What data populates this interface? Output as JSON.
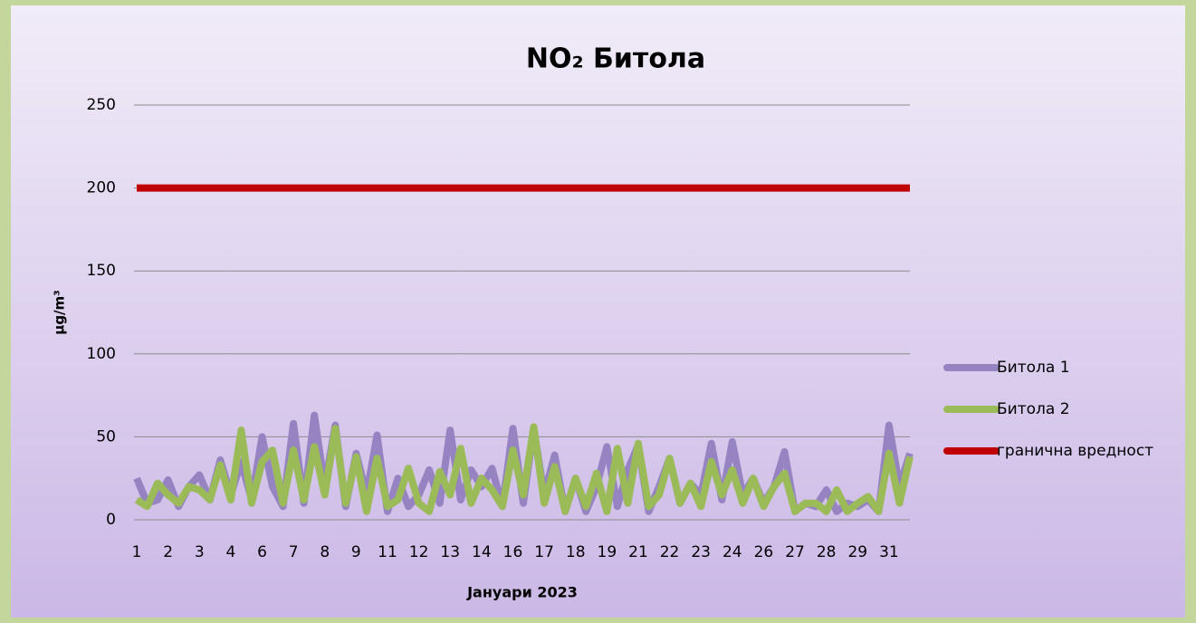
{
  "chart_data": {
    "type": "line",
    "title": "NO₂ Битола",
    "ylabel": "µg/m³",
    "xlabel": "Јануари 2023",
    "categories": [
      "1",
      null,
      null,
      "2",
      null,
      null,
      "3",
      null,
      null,
      "4",
      null,
      null,
      "6",
      null,
      null,
      "7",
      null,
      null,
      "8",
      null,
      null,
      "9",
      null,
      null,
      "11",
      null,
      null,
      "12",
      null,
      null,
      "13",
      null,
      null,
      "14",
      null,
      null,
      "16",
      null,
      null,
      "17",
      null,
      null,
      "18",
      null,
      null,
      "19",
      null,
      null,
      "21",
      null,
      null,
      "22",
      null,
      null,
      "23",
      null,
      null,
      "24",
      null,
      null,
      "26",
      null,
      null,
      "27",
      null,
      null,
      "28",
      null,
      null,
      "29",
      null,
      null,
      "31",
      null,
      null
    ],
    "series": [
      {
        "name": "Битола 1",
        "color": "#9684c2",
        "values": [
          25,
          10,
          12,
          24,
          8,
          20,
          27,
          12,
          36,
          15,
          35,
          12,
          50,
          20,
          8,
          58,
          10,
          63,
          20,
          57,
          8,
          40,
          15,
          51,
          5,
          25,
          8,
          15,
          30,
          10,
          54,
          12,
          30,
          20,
          31,
          8,
          55,
          10,
          55,
          15,
          39,
          5,
          25,
          5,
          20,
          44,
          8,
          30,
          45,
          5,
          20,
          37,
          10,
          22,
          15,
          46,
          12,
          47,
          15,
          25,
          10,
          20,
          41,
          5,
          10,
          8,
          18,
          5,
          10,
          8,
          12,
          5,
          57,
          20,
          40
        ]
      },
      {
        "name": "Битола 2",
        "color": "#9bbb59",
        "values": [
          12,
          8,
          22,
          15,
          10,
          20,
          18,
          12,
          33,
          12,
          54,
          10,
          35,
          42,
          10,
          42,
          12,
          44,
          15,
          55,
          10,
          38,
          5,
          37,
          8,
          12,
          31,
          10,
          5,
          29,
          15,
          43,
          10,
          25,
          18,
          8,
          42,
          15,
          56,
          10,
          32,
          5,
          25,
          8,
          28,
          5,
          43,
          10,
          46,
          8,
          15,
          37,
          10,
          22,
          8,
          35,
          15,
          30,
          10,
          25,
          8,
          20,
          28,
          5,
          10,
          10,
          5,
          18,
          5,
          10,
          14,
          5,
          40,
          10,
          38
        ]
      },
      {
        "name": "гранична вредност",
        "color": "#c00000",
        "values": [
          200,
          200,
          200,
          200,
          200,
          200,
          200,
          200,
          200,
          200,
          200,
          200,
          200,
          200,
          200,
          200,
          200,
          200,
          200,
          200,
          200,
          200,
          200,
          200,
          200,
          200,
          200,
          200,
          200,
          200,
          200,
          200,
          200,
          200,
          200,
          200,
          200,
          200,
          200,
          200,
          200,
          200,
          200,
          200,
          200,
          200,
          200,
          200,
          200,
          200,
          200,
          200,
          200,
          200,
          200,
          200,
          200,
          200,
          200,
          200,
          200,
          200,
          200,
          200,
          200,
          200,
          200,
          200,
          200,
          200,
          200,
          200,
          200,
          200,
          200
        ]
      }
    ],
    "ylim": [
      0,
      250
    ],
    "yticks": [
      0,
      50,
      100,
      150,
      200,
      250
    ],
    "grid": true,
    "legend": "right"
  }
}
